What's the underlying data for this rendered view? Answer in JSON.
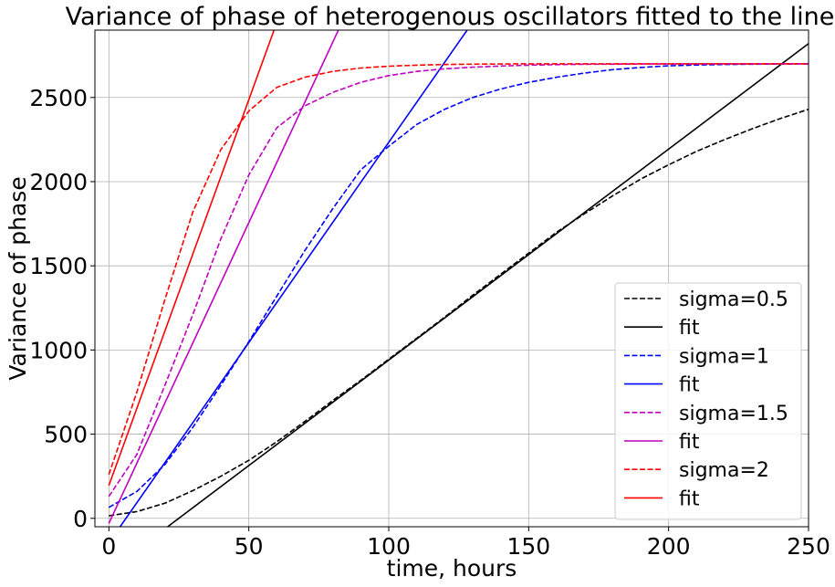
{
  "chart_data": {
    "type": "line",
    "title": "Variance of phase of heterogenous oscillators fitted to the line",
    "xlabel": "time, hours",
    "ylabel": "Variance of phase",
    "xlim": [
      -5,
      250
    ],
    "ylim": [
      -50,
      2900
    ],
    "grid": true,
    "legend_position": "lower-right",
    "x_ticks": [
      0,
      50,
      100,
      150,
      200,
      250
    ],
    "y_ticks": [
      0,
      500,
      1000,
      1500,
      2000,
      2500
    ],
    "series": [
      {
        "name": "sigma=0.5",
        "style": "dashed",
        "color": "#000000",
        "x": [
          0,
          10,
          20,
          30,
          40,
          50,
          60,
          70,
          80,
          90,
          100,
          110,
          120,
          130,
          140,
          150,
          160,
          170,
          180,
          190,
          200,
          210,
          220,
          230,
          240,
          250
        ],
        "y": [
          15,
          40,
          90,
          165,
          250,
          345,
          455,
          575,
          700,
          820,
          945,
          1070,
          1195,
          1325,
          1450,
          1575,
          1700,
          1810,
          1915,
          2015,
          2100,
          2180,
          2250,
          2315,
          2375,
          2430
        ]
      },
      {
        "name": "fit",
        "style": "solid",
        "color": "#000000",
        "x": [
          21,
          250
        ],
        "y": [
          -50,
          2820
        ]
      },
      {
        "name": "sigma=1",
        "style": "dashed",
        "color": "#0000ff",
        "x": [
          0,
          10,
          20,
          30,
          40,
          50,
          60,
          70,
          80,
          90,
          100,
          110,
          120,
          130,
          140,
          150,
          160,
          170,
          180,
          190,
          200,
          210,
          220,
          230,
          240,
          250
        ],
        "y": [
          65,
          160,
          320,
          540,
          790,
          1050,
          1320,
          1590,
          1840,
          2070,
          2210,
          2340,
          2430,
          2500,
          2550,
          2590,
          2620,
          2645,
          2665,
          2678,
          2688,
          2693,
          2696,
          2698,
          2699,
          2700
        ]
      },
      {
        "name": "fit",
        "style": "solid",
        "color": "#0000ff",
        "x": [
          4,
          128
        ],
        "y": [
          -50,
          2900
        ]
      },
      {
        "name": "sigma=1.5",
        "style": "dashed",
        "color": "#bf00bf",
        "x": [
          0,
          10,
          20,
          30,
          40,
          50,
          60,
          70,
          80,
          90,
          100,
          110,
          120,
          130,
          140,
          150,
          160,
          170,
          180,
          190,
          200,
          210,
          220,
          230,
          240,
          250
        ],
        "y": [
          130,
          380,
          790,
          1210,
          1660,
          2040,
          2320,
          2450,
          2530,
          2590,
          2630,
          2655,
          2670,
          2680,
          2687,
          2692,
          2695,
          2697,
          2698,
          2699,
          2699,
          2700,
          2700,
          2700,
          2700,
          2700
        ]
      },
      {
        "name": "fit",
        "style": "solid",
        "color": "#bf00bf",
        "x": [
          0,
          82
        ],
        "y": [
          -30,
          2900
        ]
      },
      {
        "name": "sigma=2",
        "style": "dashed",
        "color": "#ff0000",
        "x": [
          0,
          10,
          20,
          30,
          40,
          50,
          60,
          70,
          80,
          90,
          100,
          110,
          120,
          130,
          140,
          150,
          160,
          170,
          180,
          190,
          200,
          210,
          220,
          230,
          240,
          250
        ],
        "y": [
          260,
          750,
          1300,
          1820,
          2190,
          2420,
          2560,
          2620,
          2655,
          2675,
          2686,
          2692,
          2696,
          2698,
          2699,
          2700,
          2700,
          2700,
          2700,
          2700,
          2700,
          2700,
          2700,
          2700,
          2700,
          2700
        ]
      },
      {
        "name": "fit",
        "style": "solid",
        "color": "#ff0000",
        "x": [
          0,
          59
        ],
        "y": [
          195,
          2900
        ]
      }
    ]
  }
}
